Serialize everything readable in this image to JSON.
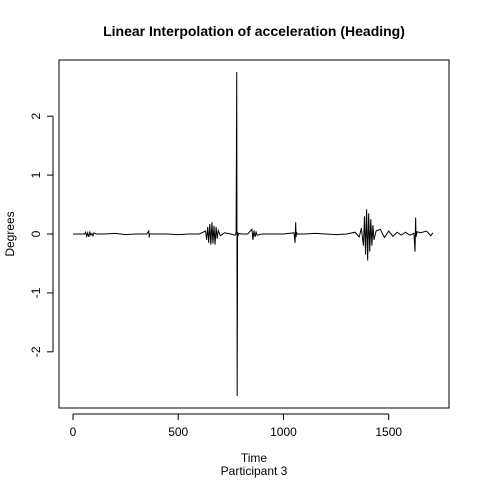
{
  "chart_data": {
    "type": "line",
    "title": "Linear Interpolation of acceleration (Heading)",
    "xlabel": "Time",
    "subtitle": "Participant  3",
    "ylabel": "Degrees",
    "xlim": [
      0,
      1720
    ],
    "ylim": [
      -2.75,
      2.75
    ],
    "x_ticks": [
      0,
      500,
      1000,
      1500
    ],
    "x_tick_labels": [
      "0",
      "500",
      "1000",
      "1500"
    ],
    "y_ticks": [
      -2,
      -1,
      0,
      1,
      2
    ],
    "y_tick_labels": [
      "-2",
      "-1",
      "0",
      "1",
      "2"
    ],
    "grid": false,
    "series": [
      {
        "x": [
          0,
          55,
          60,
          65,
          70,
          75,
          80,
          85,
          90,
          95,
          100,
          110,
          150,
          200,
          250,
          300,
          350,
          360,
          362,
          364,
          400,
          450,
          500,
          550,
          600,
          630,
          635,
          640,
          645,
          650,
          655,
          660,
          665,
          670,
          675,
          680,
          685,
          690,
          700,
          720,
          750,
          770,
          775,
          778,
          780,
          782,
          785,
          790,
          800,
          830,
          850,
          855,
          860,
          865,
          870,
          875,
          900,
          950,
          1000,
          1050,
          1055,
          1058,
          1060,
          1062,
          1065,
          1100,
          1150,
          1200,
          1250,
          1300,
          1340,
          1360,
          1370,
          1380,
          1385,
          1390,
          1395,
          1400,
          1405,
          1410,
          1415,
          1420,
          1425,
          1430,
          1440,
          1460,
          1480,
          1500,
          1520,
          1540,
          1560,
          1580,
          1600,
          1620,
          1625,
          1628,
          1630,
          1635,
          1650,
          1680,
          1700,
          1710
        ],
        "values": [
          0,
          0,
          0.03,
          -0.04,
          0.02,
          -0.05,
          0.03,
          -0.02,
          0.01,
          -0.03,
          0.02,
          0,
          0,
          0.01,
          -0.01,
          0,
          0,
          0.05,
          -0.06,
          0,
          0,
          0,
          -0.01,
          0,
          0,
          0.05,
          -0.1,
          0.12,
          -0.15,
          0.17,
          -0.18,
          0.2,
          -0.16,
          0.14,
          -0.18,
          0.12,
          -0.08,
          0.06,
          -0.03,
          0.02,
          0,
          -0.02,
          0.02,
          2.75,
          -2.75,
          0.03,
          -0.02,
          0.01,
          0,
          0,
          0.08,
          -0.1,
          0.06,
          -0.05,
          0.03,
          -0.02,
          0,
          0,
          0,
          0.02,
          -0.15,
          0.2,
          -0.05,
          0.03,
          0,
          0,
          0.01,
          0,
          -0.01,
          0,
          0.03,
          -0.05,
          0.1,
          -0.2,
          0.3,
          -0.35,
          0.42,
          -0.45,
          0.35,
          -0.3,
          0.25,
          -0.2,
          0.15,
          -0.1,
          0.05,
          0.08,
          -0.06,
          0.05,
          -0.04,
          0.03,
          -0.02,
          0.03,
          -0.02,
          0.01,
          -0.3,
          0.28,
          -0.05,
          0.04,
          0.02,
          0.05,
          -0.03,
          0.02
        ]
      }
    ]
  }
}
